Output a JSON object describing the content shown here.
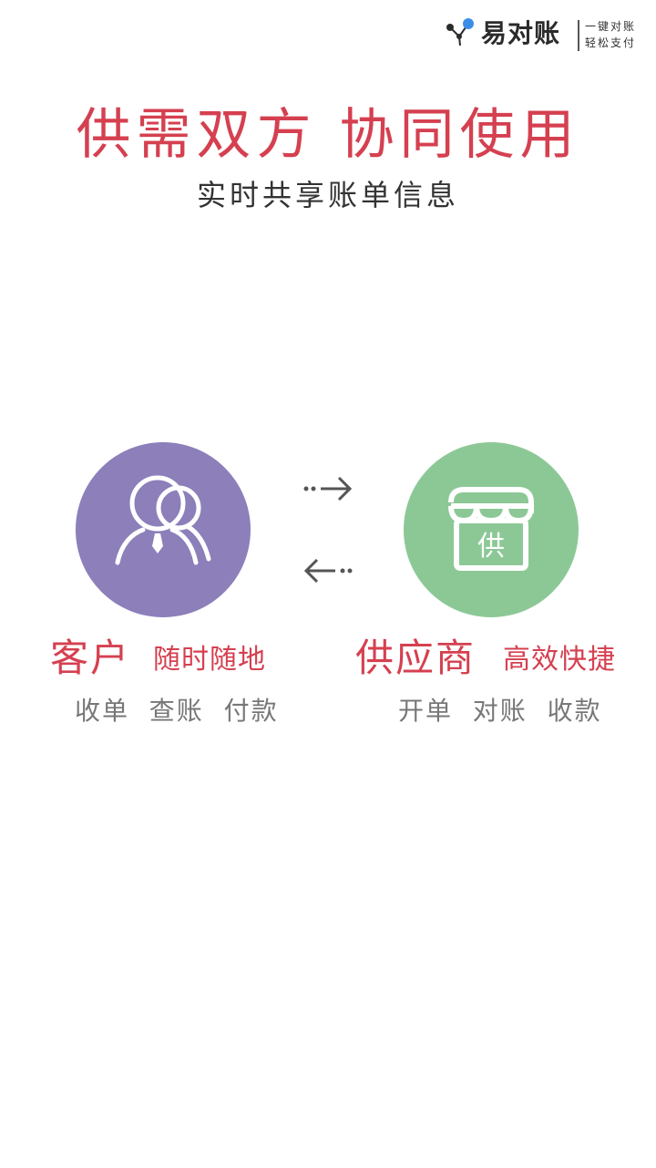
{
  "brand": {
    "name": "易对账",
    "tagline_line1": "一键对账",
    "tagline_line2": "轻松支付",
    "accent": "#d54050"
  },
  "headline": "供需双方 协同使用",
  "subhead": "实时共享账单信息",
  "roles": {
    "customer": {
      "title": "客户",
      "slogan": "随时随地",
      "desc": "收单  查账  付款",
      "color": "#8c7fba",
      "icon": "user-icon"
    },
    "supplier": {
      "title": "供应商",
      "slogan": "高效快捷",
      "desc": "开单  对账  收款",
      "color": "#8cc896",
      "icon": "store-icon",
      "icon_label": "供"
    }
  },
  "arrows": {
    "to_supplier": "arrow-right-icon",
    "to_customer": "arrow-left-icon"
  }
}
